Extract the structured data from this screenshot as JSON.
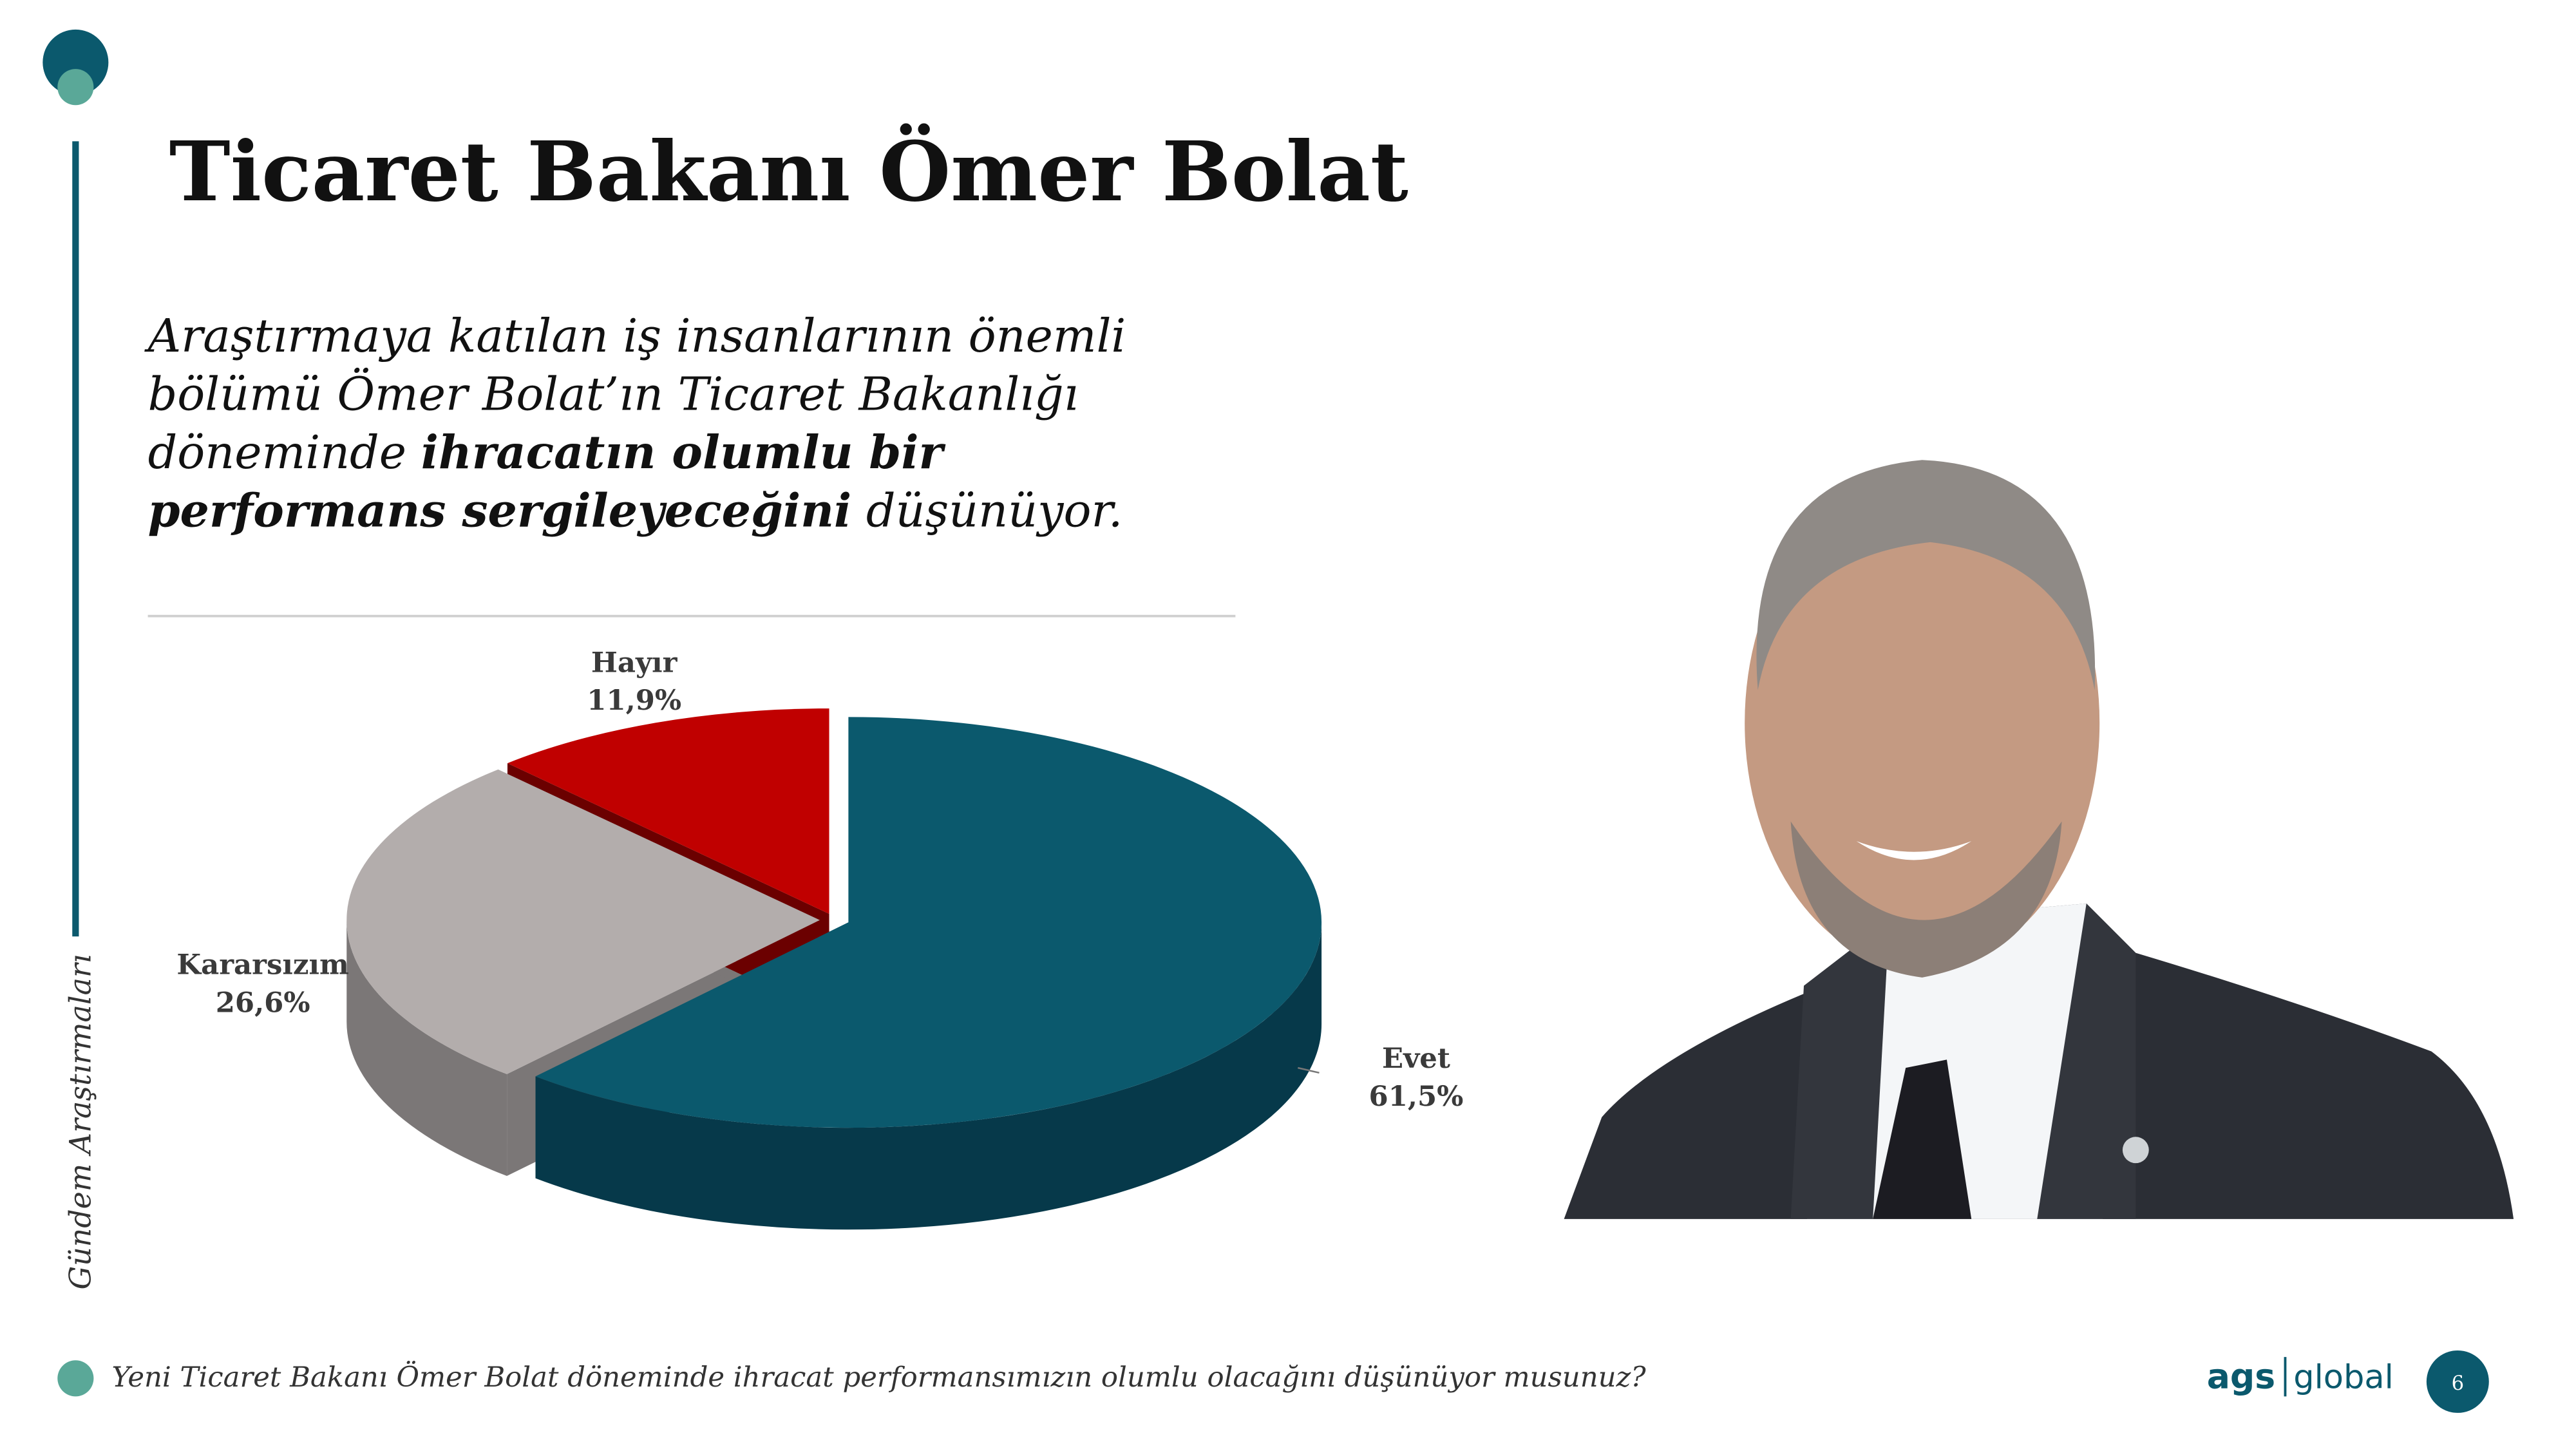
{
  "slide": {
    "title": "Ticaret Bakanı Ömer Bolat",
    "side_label": "Gündem Araştırmaları",
    "paragraph": [
      [
        {
          "text": "Araştırmaya katılan iş insanlarının önemli"
        }
      ],
      [
        {
          "text": "bölümü Ömer Bolat’ın Ticaret Bakanlığı"
        }
      ],
      [
        {
          "text": "döneminde "
        },
        {
          "text": "ihracatın olumlu bir",
          "bold": true
        }
      ],
      [
        {
          "text": "performans sergileyeceğini",
          "bold": true
        },
        {
          "text": " düşünüyor."
        }
      ]
    ],
    "footnote": "Yeni Ticaret Bakanı Ömer Bolat döneminde ihracat performansımızın olumlu olacağını düşünüyor musunuz?",
    "logo_left": "ags",
    "logo_right": "global",
    "page_number": 6
  },
  "chart_data": {
    "type": "pie",
    "categories": [
      "Evet",
      "Kararsızım",
      "Hayır"
    ],
    "values": [
      61.5,
      26.6,
      11.9
    ],
    "value_labels": [
      "61,5%",
      "26,6%",
      "11,9%"
    ],
    "colors": [
      "#0b596d",
      "#b3adac",
      "#c00000"
    ],
    "side_colors": [
      "#06394a",
      "#7b7777",
      "#6b0000"
    ]
  }
}
